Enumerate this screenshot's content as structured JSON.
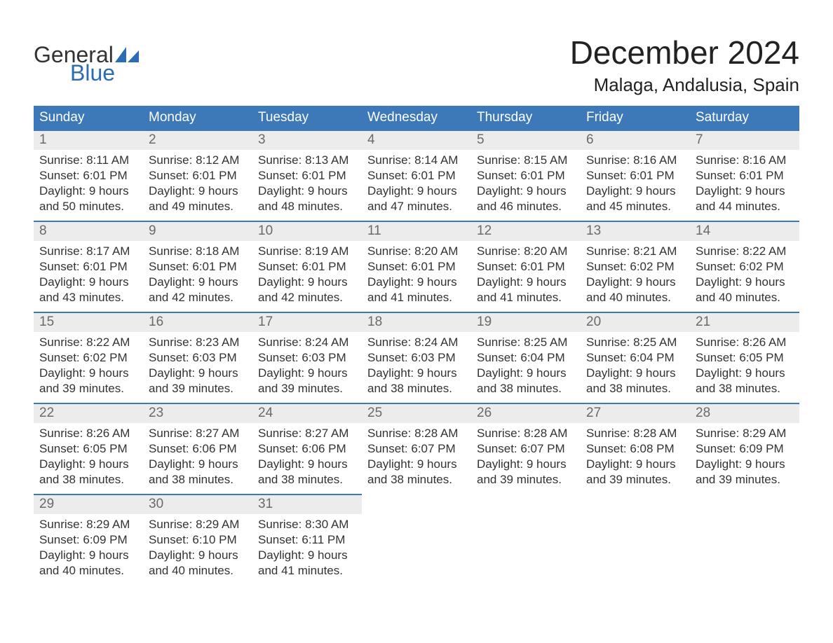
{
  "brand": {
    "word_top": "General",
    "word_bottom": "Blue",
    "top_color": "#333333",
    "bottom_color": "#2a6db3",
    "sail_color": "#2a6db3"
  },
  "header": {
    "title": "December 2024",
    "location": "Malaga, Andalusia, Spain"
  },
  "styling": {
    "header_bg": "#3d79b8",
    "header_text": "#ffffff",
    "daynum_bg": "#ececec",
    "daynum_color": "#6a6a6a",
    "row_top_border": "#3d79b8",
    "body_text": "#333333",
    "page_bg": "#ffffff",
    "header_fontsize": 19,
    "daynum_fontsize": 19,
    "cell_fontsize": 17,
    "title_fontsize": 46,
    "location_fontsize": 26
  },
  "weekdays": [
    "Sunday",
    "Monday",
    "Tuesday",
    "Wednesday",
    "Thursday",
    "Friday",
    "Saturday"
  ],
  "weeks": [
    [
      {
        "n": "1",
        "sr": "Sunrise: 8:11 AM",
        "ss": "Sunset: 6:01 PM",
        "d1": "Daylight: 9 hours",
        "d2": "and 50 minutes."
      },
      {
        "n": "2",
        "sr": "Sunrise: 8:12 AM",
        "ss": "Sunset: 6:01 PM",
        "d1": "Daylight: 9 hours",
        "d2": "and 49 minutes."
      },
      {
        "n": "3",
        "sr": "Sunrise: 8:13 AM",
        "ss": "Sunset: 6:01 PM",
        "d1": "Daylight: 9 hours",
        "d2": "and 48 minutes."
      },
      {
        "n": "4",
        "sr": "Sunrise: 8:14 AM",
        "ss": "Sunset: 6:01 PM",
        "d1": "Daylight: 9 hours",
        "d2": "and 47 minutes."
      },
      {
        "n": "5",
        "sr": "Sunrise: 8:15 AM",
        "ss": "Sunset: 6:01 PM",
        "d1": "Daylight: 9 hours",
        "d2": "and 46 minutes."
      },
      {
        "n": "6",
        "sr": "Sunrise: 8:16 AM",
        "ss": "Sunset: 6:01 PM",
        "d1": "Daylight: 9 hours",
        "d2": "and 45 minutes."
      },
      {
        "n": "7",
        "sr": "Sunrise: 8:16 AM",
        "ss": "Sunset: 6:01 PM",
        "d1": "Daylight: 9 hours",
        "d2": "and 44 minutes."
      }
    ],
    [
      {
        "n": "8",
        "sr": "Sunrise: 8:17 AM",
        "ss": "Sunset: 6:01 PM",
        "d1": "Daylight: 9 hours",
        "d2": "and 43 minutes."
      },
      {
        "n": "9",
        "sr": "Sunrise: 8:18 AM",
        "ss": "Sunset: 6:01 PM",
        "d1": "Daylight: 9 hours",
        "d2": "and 42 minutes."
      },
      {
        "n": "10",
        "sr": "Sunrise: 8:19 AM",
        "ss": "Sunset: 6:01 PM",
        "d1": "Daylight: 9 hours",
        "d2": "and 42 minutes."
      },
      {
        "n": "11",
        "sr": "Sunrise: 8:20 AM",
        "ss": "Sunset: 6:01 PM",
        "d1": "Daylight: 9 hours",
        "d2": "and 41 minutes."
      },
      {
        "n": "12",
        "sr": "Sunrise: 8:20 AM",
        "ss": "Sunset: 6:01 PM",
        "d1": "Daylight: 9 hours",
        "d2": "and 41 minutes."
      },
      {
        "n": "13",
        "sr": "Sunrise: 8:21 AM",
        "ss": "Sunset: 6:02 PM",
        "d1": "Daylight: 9 hours",
        "d2": "and 40 minutes."
      },
      {
        "n": "14",
        "sr": "Sunrise: 8:22 AM",
        "ss": "Sunset: 6:02 PM",
        "d1": "Daylight: 9 hours",
        "d2": "and 40 minutes."
      }
    ],
    [
      {
        "n": "15",
        "sr": "Sunrise: 8:22 AM",
        "ss": "Sunset: 6:02 PM",
        "d1": "Daylight: 9 hours",
        "d2": "and 39 minutes."
      },
      {
        "n": "16",
        "sr": "Sunrise: 8:23 AM",
        "ss": "Sunset: 6:03 PM",
        "d1": "Daylight: 9 hours",
        "d2": "and 39 minutes."
      },
      {
        "n": "17",
        "sr": "Sunrise: 8:24 AM",
        "ss": "Sunset: 6:03 PM",
        "d1": "Daylight: 9 hours",
        "d2": "and 39 minutes."
      },
      {
        "n": "18",
        "sr": "Sunrise: 8:24 AM",
        "ss": "Sunset: 6:03 PM",
        "d1": "Daylight: 9 hours",
        "d2": "and 38 minutes."
      },
      {
        "n": "19",
        "sr": "Sunrise: 8:25 AM",
        "ss": "Sunset: 6:04 PM",
        "d1": "Daylight: 9 hours",
        "d2": "and 38 minutes."
      },
      {
        "n": "20",
        "sr": "Sunrise: 8:25 AM",
        "ss": "Sunset: 6:04 PM",
        "d1": "Daylight: 9 hours",
        "d2": "and 38 minutes."
      },
      {
        "n": "21",
        "sr": "Sunrise: 8:26 AM",
        "ss": "Sunset: 6:05 PM",
        "d1": "Daylight: 9 hours",
        "d2": "and 38 minutes."
      }
    ],
    [
      {
        "n": "22",
        "sr": "Sunrise: 8:26 AM",
        "ss": "Sunset: 6:05 PM",
        "d1": "Daylight: 9 hours",
        "d2": "and 38 minutes."
      },
      {
        "n": "23",
        "sr": "Sunrise: 8:27 AM",
        "ss": "Sunset: 6:06 PM",
        "d1": "Daylight: 9 hours",
        "d2": "and 38 minutes."
      },
      {
        "n": "24",
        "sr": "Sunrise: 8:27 AM",
        "ss": "Sunset: 6:06 PM",
        "d1": "Daylight: 9 hours",
        "d2": "and 38 minutes."
      },
      {
        "n": "25",
        "sr": "Sunrise: 8:28 AM",
        "ss": "Sunset: 6:07 PM",
        "d1": "Daylight: 9 hours",
        "d2": "and 38 minutes."
      },
      {
        "n": "26",
        "sr": "Sunrise: 8:28 AM",
        "ss": "Sunset: 6:07 PM",
        "d1": "Daylight: 9 hours",
        "d2": "and 39 minutes."
      },
      {
        "n": "27",
        "sr": "Sunrise: 8:28 AM",
        "ss": "Sunset: 6:08 PM",
        "d1": "Daylight: 9 hours",
        "d2": "and 39 minutes."
      },
      {
        "n": "28",
        "sr": "Sunrise: 8:29 AM",
        "ss": "Sunset: 6:09 PM",
        "d1": "Daylight: 9 hours",
        "d2": "and 39 minutes."
      }
    ],
    [
      {
        "n": "29",
        "sr": "Sunrise: 8:29 AM",
        "ss": "Sunset: 6:09 PM",
        "d1": "Daylight: 9 hours",
        "d2": "and 40 minutes."
      },
      {
        "n": "30",
        "sr": "Sunrise: 8:29 AM",
        "ss": "Sunset: 6:10 PM",
        "d1": "Daylight: 9 hours",
        "d2": "and 40 minutes."
      },
      {
        "n": "31",
        "sr": "Sunrise: 8:30 AM",
        "ss": "Sunset: 6:11 PM",
        "d1": "Daylight: 9 hours",
        "d2": "and 41 minutes."
      },
      null,
      null,
      null,
      null
    ]
  ]
}
